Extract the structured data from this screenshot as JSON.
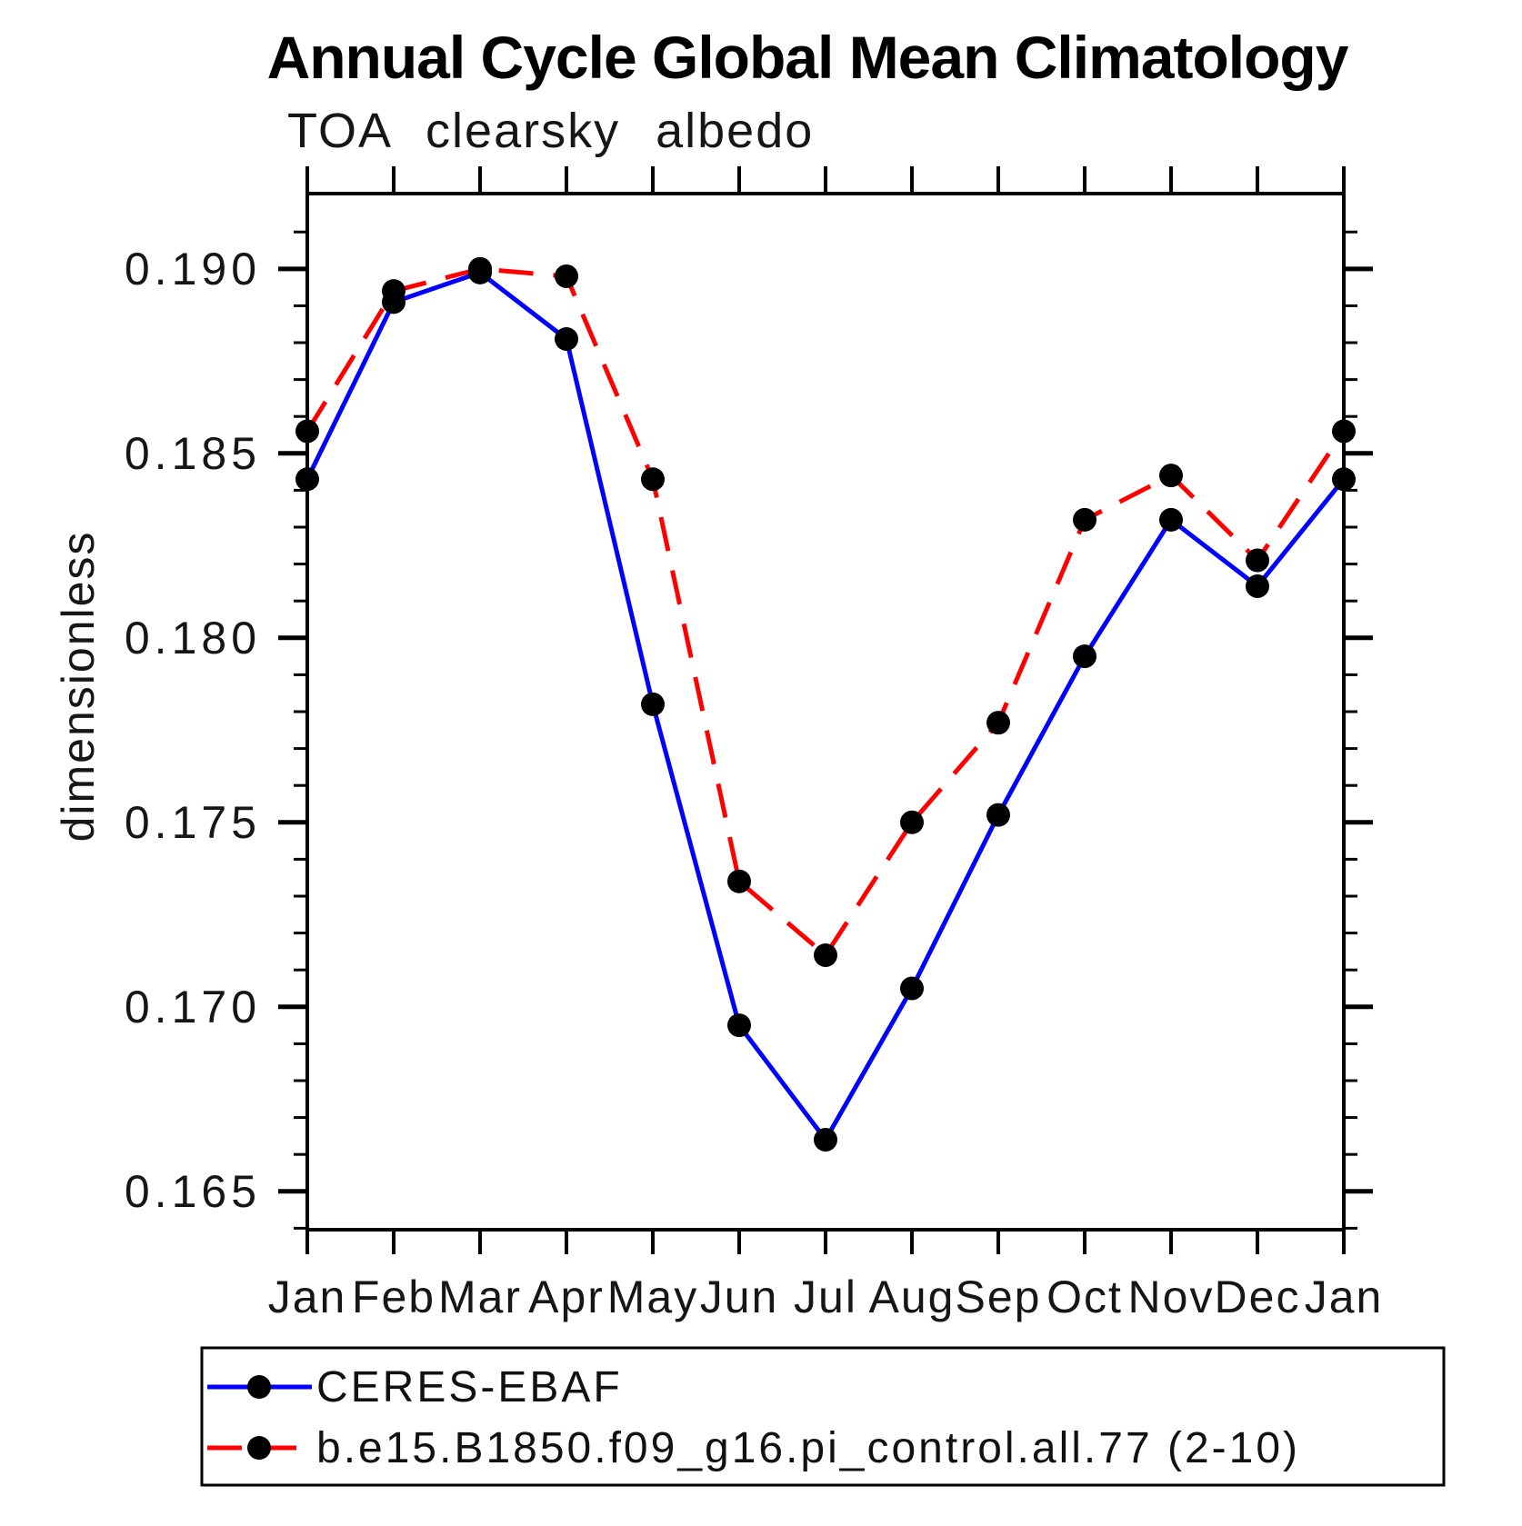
{
  "page": {
    "background": "#ffffff",
    "text_color": "#000000",
    "frame_color": "#000000"
  },
  "chart_data": {
    "type": "line",
    "title": "Annual Cycle Global Mean Climatology",
    "subtitle": "TOA clearsky albedo",
    "xlabel": "",
    "ylabel": "dimensionless",
    "categories": [
      "Jan",
      "Feb",
      "Mar",
      "Apr",
      "May",
      "Jun",
      "Jul",
      "Aug",
      "Sep",
      "Oct",
      "Nov",
      "Dec",
      "Jan"
    ],
    "y_major_tick_labels": [
      "0.190",
      "0.185",
      "0.180",
      "0.175",
      "0.170",
      "0.165"
    ],
    "y_minor_step": 0.001,
    "ylim": [
      0.16396,
      0.19204
    ],
    "grid": false,
    "legend_position": "bottom",
    "series": [
      {
        "name": "CERES-EBAF",
        "color": "#0000ff",
        "line_style": "solid",
        "marker": "circle",
        "marker_color": "#000000",
        "values": [
          0.1843,
          0.1891,
          0.1899,
          0.1881,
          0.1782,
          0.1695,
          0.1664,
          0.1705,
          0.1752,
          0.1795,
          0.1832,
          0.1814,
          0.1843
        ]
      },
      {
        "name": "b.e15.B1850.f09_g16.pi_control.all.77 (2-10)",
        "color": "#ff0000",
        "line_style": "dashed",
        "marker": "circle",
        "marker_color": "#000000",
        "values": [
          0.1856,
          0.1894,
          0.19,
          0.1898,
          0.1843,
          0.1734,
          0.1714,
          0.175,
          0.1777,
          0.1832,
          0.1844,
          0.1821,
          0.1856
        ]
      }
    ]
  }
}
